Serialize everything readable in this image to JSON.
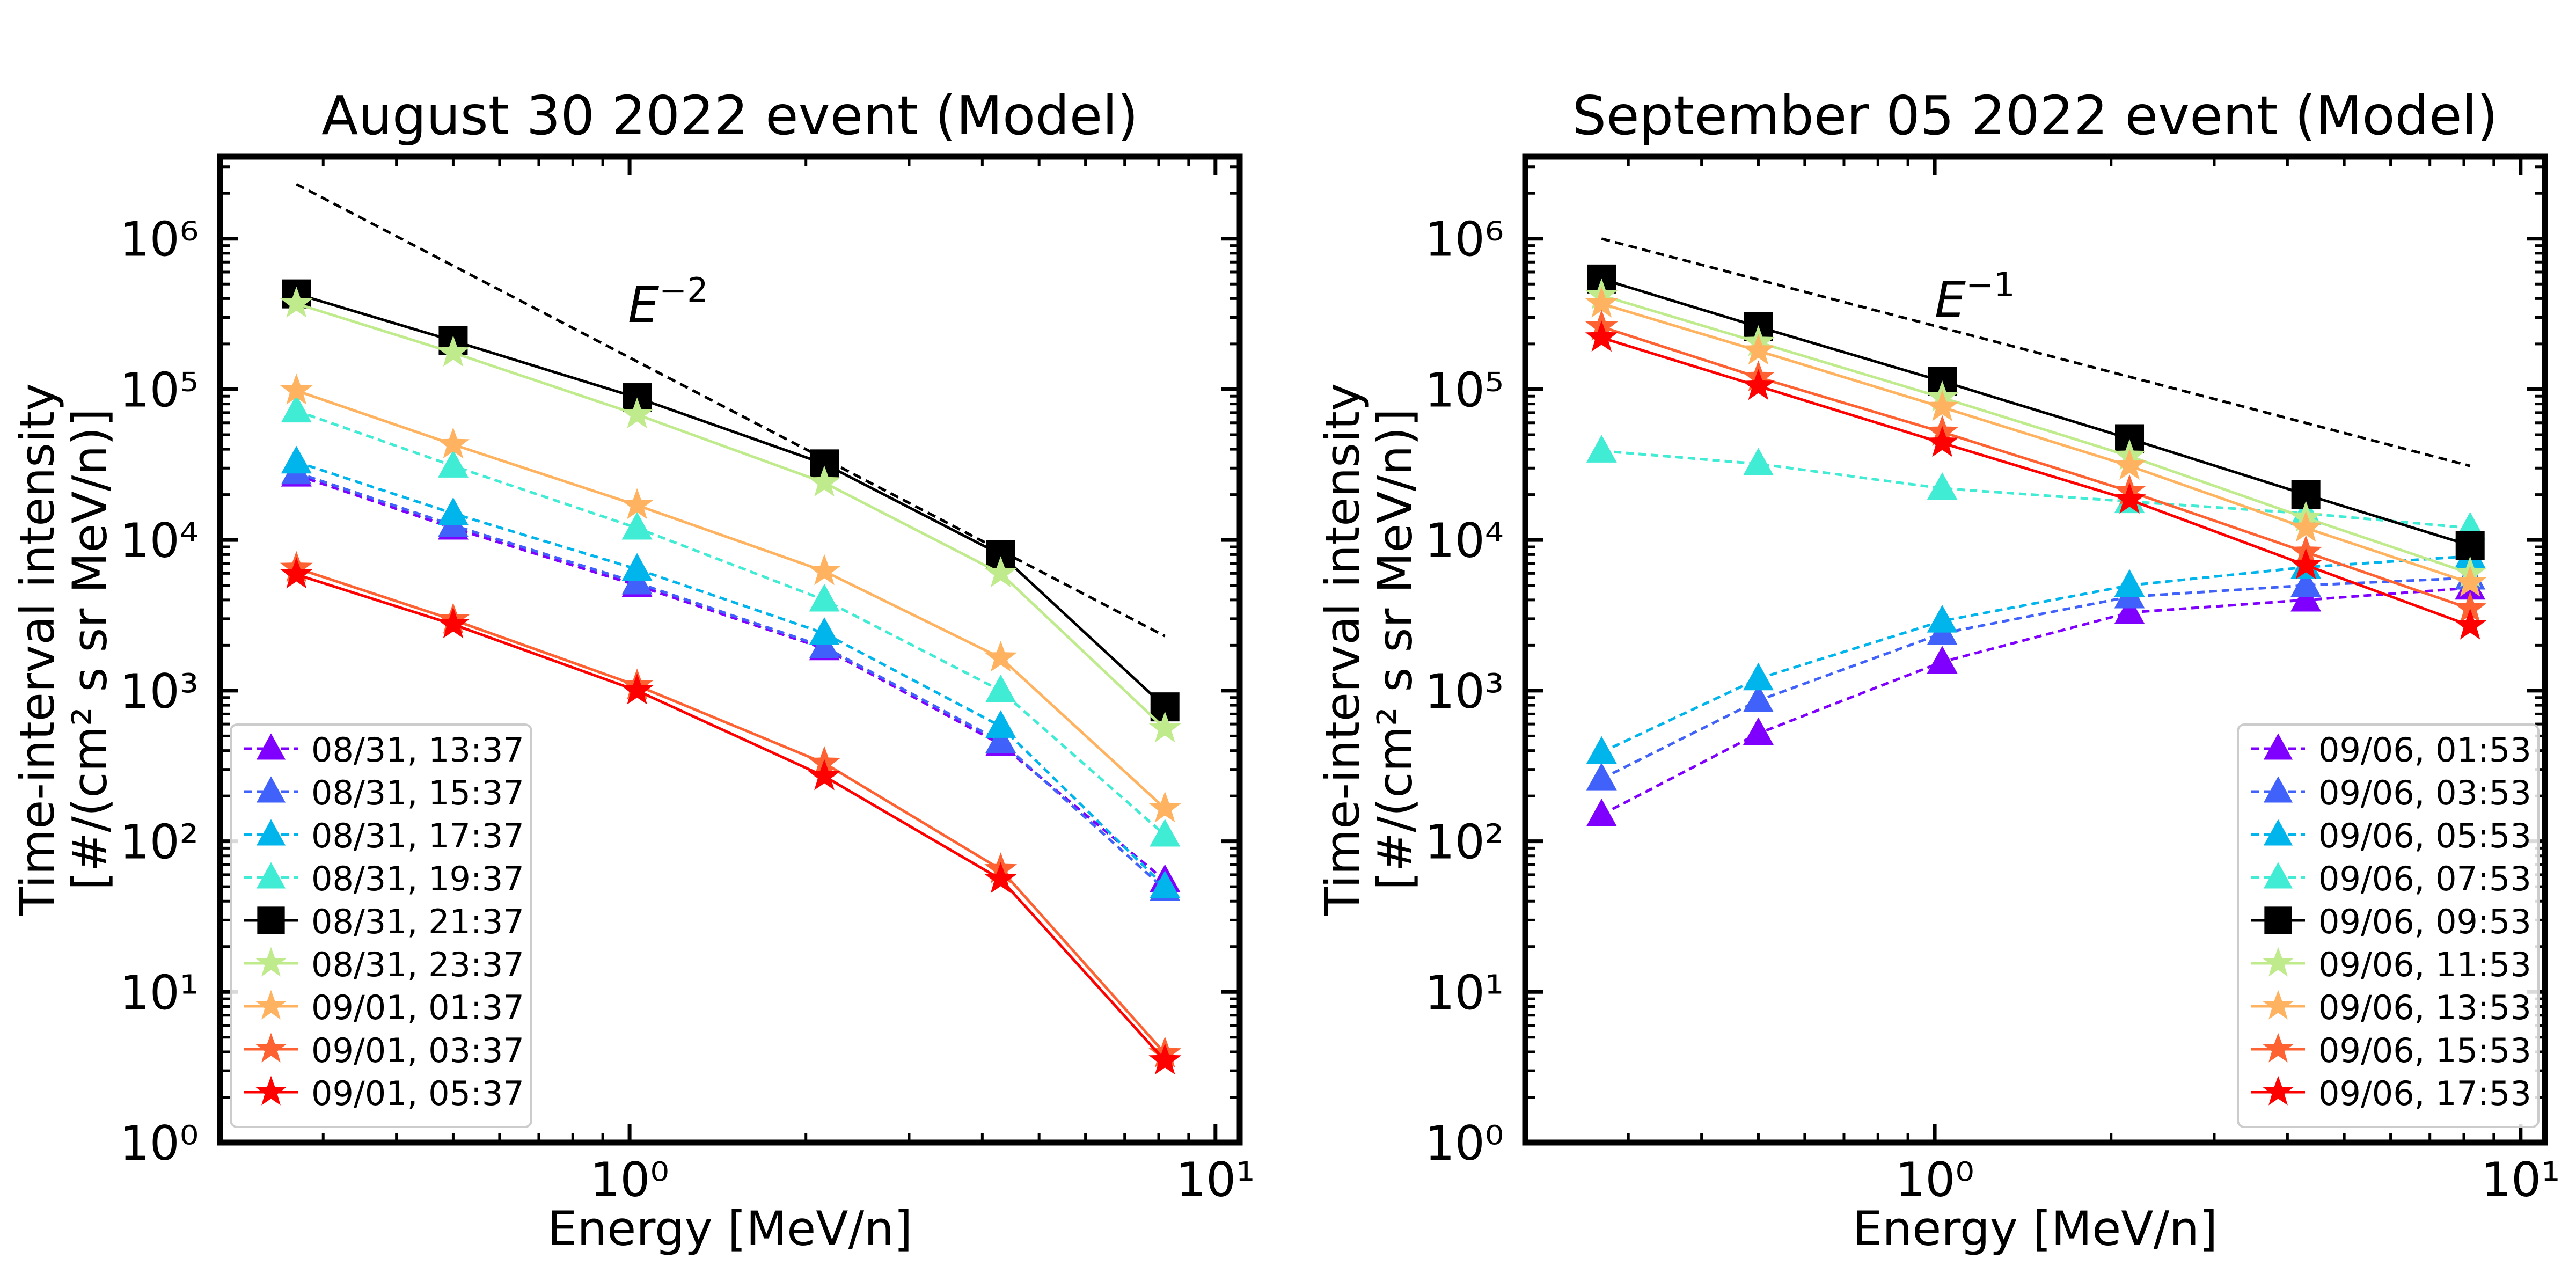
{
  "figure_title": "",
  "chart_data": [
    {
      "type": "line",
      "title": "August 30 2022 event (Model)",
      "xlabel": "Energy [MeV/n]",
      "ylabel_line1": "Time-interval intensity",
      "ylabel_line2": "[#/(cm² s sr MeV/n)]",
      "xscale": "log",
      "yscale": "log",
      "xlim": [
        0.2,
        11
      ],
      "ylim": [
        1,
        3500000
      ],
      "x_ticks": [
        {
          "value": 1,
          "label": "10⁰"
        },
        {
          "value": 10,
          "label": "10¹"
        }
      ],
      "y_ticks": [
        {
          "value": 1,
          "label": "10⁰"
        },
        {
          "value": 10,
          "label": "10¹"
        },
        {
          "value": 100,
          "label": "10²"
        },
        {
          "value": 1000,
          "label": "10³"
        },
        {
          "value": 10000,
          "label": "10⁴"
        },
        {
          "value": 100000,
          "label": "10⁵"
        },
        {
          "value": 1000000,
          "label": "10⁶"
        }
      ],
      "legend_position": "lower left",
      "x": [
        0.27,
        0.5,
        1.03,
        2.15,
        4.3,
        8.2
      ],
      "series": [
        {
          "name": "08/31, 13:37",
          "color": "#8000ff",
          "marker": "triangle",
          "dashed": true,
          "values": [
            27000,
            12000,
            5000,
            1900,
            440,
            55
          ]
        },
        {
          "name": "08/31, 15:37",
          "color": "#4062fa",
          "marker": "triangle",
          "dashed": true,
          "values": [
            28000,
            12500,
            5200,
            1950,
            460,
            48
          ]
        },
        {
          "name": "08/31, 17:37",
          "color": "#00b5eb",
          "marker": "triangle",
          "dashed": true,
          "values": [
            33000,
            15000,
            6400,
            2400,
            580,
            50
          ]
        },
        {
          "name": "08/31, 19:37",
          "color": "#40ecd4",
          "marker": "triangle",
          "dashed": true,
          "values": [
            72000,
            31000,
            12000,
            4000,
            1000,
            110
          ]
        },
        {
          "name": "08/31, 21:37",
          "color": "#000000",
          "marker": "square",
          "dashed": false,
          "values": [
            430000,
            210000,
            88000,
            32000,
            8000,
            780
          ]
        },
        {
          "name": "08/31, 23:37",
          "color": "#c0eb8d",
          "marker": "star",
          "dashed": false,
          "values": [
            370000,
            175000,
            68000,
            24000,
            6000,
            560
          ]
        },
        {
          "name": "09/01, 01:37",
          "color": "#ffb360",
          "marker": "star",
          "dashed": false,
          "values": [
            98000,
            43000,
            17000,
            6200,
            1650,
            165
          ]
        },
        {
          "name": "09/01, 03:37",
          "color": "#ff6232",
          "marker": "star",
          "dashed": false,
          "values": [
            6500,
            2950,
            1080,
            330,
            65,
            3.9
          ]
        },
        {
          "name": "09/01, 05:37",
          "color": "#ff0000",
          "marker": "star",
          "dashed": false,
          "values": [
            5900,
            2750,
            1000,
            270,
            56,
            3.5
          ]
        }
      ],
      "reference_line": {
        "label": "E",
        "exponent": "−2",
        "x": [
          0.27,
          8.2
        ],
        "y": [
          2300000,
          2300
        ]
      }
    },
    {
      "type": "line",
      "title": "September 05 2022 event (Model)",
      "xlabel": "Energy [MeV/n]",
      "ylabel_line1": "Time-interval intensity",
      "ylabel_line2": "[#/(cm² s sr MeV/n)]",
      "xscale": "log",
      "yscale": "log",
      "xlim": [
        0.2,
        11
      ],
      "ylim": [
        1,
        3500000
      ],
      "x_ticks": [
        {
          "value": 1,
          "label": "10⁰"
        },
        {
          "value": 10,
          "label": "10¹"
        }
      ],
      "y_ticks": [
        {
          "value": 1,
          "label": "10⁰"
        },
        {
          "value": 10,
          "label": "10¹"
        },
        {
          "value": 100,
          "label": "10²"
        },
        {
          "value": 1000,
          "label": "10³"
        },
        {
          "value": 10000,
          "label": "10⁴"
        },
        {
          "value": 100000,
          "label": "10⁵"
        },
        {
          "value": 1000000,
          "label": "10⁶"
        }
      ],
      "legend_position": "lower right",
      "x": [
        0.27,
        0.5,
        1.03,
        2.15,
        4.3,
        8.2
      ],
      "series": [
        {
          "name": "09/06, 01:53",
          "color": "#8000ff",
          "marker": "triangle",
          "dashed": true,
          "values": [
            150,
            520,
            1550,
            3300,
            4000,
            4800
          ]
        },
        {
          "name": "09/06, 03:53",
          "color": "#4062fa",
          "marker": "triangle",
          "dashed": true,
          "values": [
            260,
            860,
            2400,
            4200,
            5000,
            5600
          ]
        },
        {
          "name": "09/06, 05:53",
          "color": "#00b5eb",
          "marker": "triangle",
          "dashed": true,
          "values": [
            390,
            1200,
            2900,
            5000,
            6600,
            7800
          ]
        },
        {
          "name": "09/06, 07:53",
          "color": "#40ecd4",
          "marker": "triangle",
          "dashed": true,
          "values": [
            39000,
            32000,
            22000,
            18000,
            15000,
            12000
          ]
        },
        {
          "name": "09/06, 09:53",
          "color": "#000000",
          "marker": "square",
          "dashed": false,
          "values": [
            540000,
            260000,
            113000,
            47000,
            20000,
            9200
          ]
        },
        {
          "name": "09/06, 11:53",
          "color": "#c0eb8d",
          "marker": "star",
          "dashed": false,
          "values": [
            420000,
            205000,
            88000,
            36000,
            14000,
            6000
          ]
        },
        {
          "name": "09/06, 13:53",
          "color": "#ffb360",
          "marker": "star",
          "dashed": false,
          "values": [
            370000,
            180000,
            76000,
            31000,
            12000,
            5200
          ]
        },
        {
          "name": "09/06, 15:53",
          "color": "#ff6232",
          "marker": "star",
          "dashed": false,
          "values": [
            260000,
            120000,
            52000,
            21000,
            8300,
            3500
          ]
        },
        {
          "name": "09/06, 17:53",
          "color": "#ff0000",
          "marker": "star",
          "dashed": false,
          "values": [
            220000,
            105000,
            44000,
            18500,
            6800,
            2700
          ]
        }
      ],
      "reference_line": {
        "label": "E",
        "exponent": "−1",
        "x": [
          0.27,
          8.2
        ],
        "y": [
          1000000,
          31000
        ]
      }
    }
  ]
}
